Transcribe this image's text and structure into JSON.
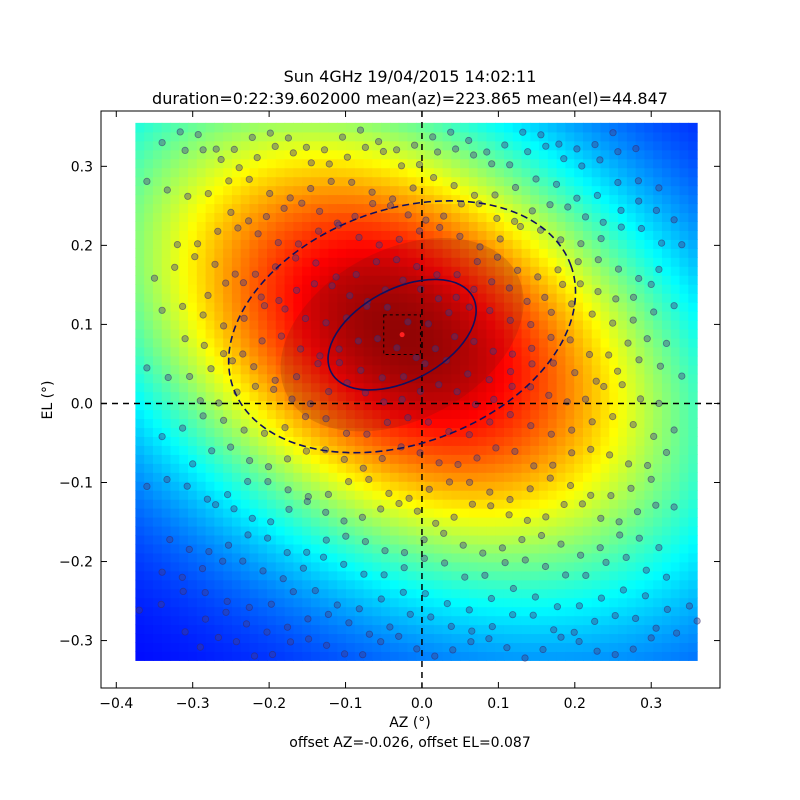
{
  "chart_data": {
    "type": "heatmap",
    "title": "Sun 4GHz 19/04/2015 14:02:11",
    "subtitle": "duration=0:22:39.602000 mean(az)=223.865 mean(el)=44.847",
    "xlabel": "AZ (°)",
    "ylabel": "EL (°)",
    "footer": "offset AZ=-0.026, offset EL=0.087",
    "xlim": [
      -0.42,
      0.39
    ],
    "ylim": [
      -0.36,
      0.37
    ],
    "x_ticks": [
      -0.4,
      -0.3,
      -0.2,
      -0.1,
      0.0,
      0.1,
      0.2,
      0.3
    ],
    "x_tick_labels": [
      "−0.4",
      "−0.3",
      "−0.2",
      "−0.1",
      "0.0",
      "0.1",
      "0.2",
      "0.3"
    ],
    "y_ticks": [
      0.3,
      0.2,
      0.1,
      0.0,
      -0.1,
      -0.2,
      -0.3
    ],
    "y_tick_labels": [
      "0.3",
      "0.2",
      "0.1",
      "0.0",
      "−0.1",
      "−0.2",
      "−0.3"
    ],
    "heatmap_extent": {
      "x": [
        -0.375,
        0.36
      ],
      "y": [
        -0.325,
        0.355
      ]
    },
    "beam_center": {
      "az": -0.026,
      "el": 0.087
    },
    "colormap": "jet",
    "grid": false,
    "crosshair": {
      "az": 0.0,
      "el": 0.0
    },
    "contours": [
      {
        "name": "half-power",
        "style": "solid",
        "center": [
          -0.026,
          0.087
        ],
        "rx": 0.105,
        "ry": 0.058,
        "rotation_deg": -28
      },
      {
        "name": "outer",
        "style": "dashed",
        "center": [
          -0.026,
          0.097
        ],
        "rx": 0.235,
        "ry": 0.148,
        "rotation_deg": -20
      }
    ],
    "center_box": {
      "az": [
        -0.05,
        -0.002
      ],
      "el": [
        0.062,
        0.112
      ]
    },
    "scan_tracks": [
      {
        "el": 0.33,
        "x": [
          -0.34,
          0.25
        ]
      },
      {
        "el": 0.31,
        "x": [
          -0.31,
          0.28
        ]
      },
      {
        "el": 0.27,
        "x": [
          -0.36,
          0.31
        ]
      },
      {
        "el": 0.24,
        "x": [
          -0.25,
          0.33
        ]
      },
      {
        "el": 0.21,
        "x": [
          -0.32,
          0.34
        ]
      },
      {
        "el": 0.17,
        "x": [
          -0.35,
          0.31
        ]
      },
      {
        "el": 0.14,
        "x": [
          -0.28,
          0.3
        ]
      },
      {
        "el": 0.11,
        "x": [
          -0.34,
          0.33
        ]
      },
      {
        "el": 0.07,
        "x": [
          -0.31,
          0.32
        ]
      },
      {
        "el": 0.04,
        "x": [
          -0.36,
          0.34
        ]
      },
      {
        "el": 0.01,
        "x": [
          -0.29,
          0.31
        ]
      },
      {
        "el": -0.03,
        "x": [
          -0.34,
          0.33
        ]
      },
      {
        "el": -0.07,
        "x": [
          -0.3,
          0.32
        ]
      },
      {
        "el": -0.11,
        "x": [
          -0.36,
          0.3
        ]
      },
      {
        "el": -0.14,
        "x": [
          -0.27,
          0.33
        ]
      },
      {
        "el": -0.18,
        "x": [
          -0.33,
          0.31
        ]
      },
      {
        "el": -0.21,
        "x": [
          -0.34,
          0.32
        ]
      },
      {
        "el": -0.25,
        "x": [
          -0.37,
          0.35
        ]
      },
      {
        "el": -0.28,
        "x": [
          -0.31,
          0.36
        ]
      },
      {
        "el": -0.31,
        "x": [
          -0.29,
          0.3
        ]
      }
    ]
  }
}
